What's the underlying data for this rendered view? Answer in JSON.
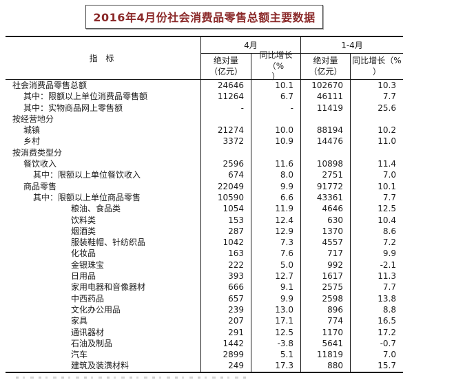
{
  "title": "2016年4月份社会消费品零售总额主要数据",
  "table": {
    "indicator_header": "指  标",
    "group_headers": {
      "april": "4月",
      "jan_april": "1-4月"
    },
    "sub_headers": {
      "apr_abs": "绝对量\n（亿元）",
      "apr_growth": "同比增长（%\n）",
      "ytd_abs": "绝对量\n（亿元）",
      "ytd_growth": "同比增长（%\n）"
    },
    "rows": [
      {
        "label": "社会消费品零售总额",
        "indent": 0,
        "apr_abs": "24646",
        "apr_growth": "10.1",
        "ytd_abs": "102670",
        "ytd_growth": "10.3"
      },
      {
        "label": "其中：限额以上单位消费品零售额",
        "indent": 1,
        "apr_abs": "11264",
        "apr_growth": "6.7",
        "ytd_abs": "46111",
        "ytd_growth": "7.7"
      },
      {
        "label": "其中：实物商品网上零售额",
        "indent": 1,
        "apr_abs": "-",
        "apr_growth": "-",
        "ytd_abs": "11419",
        "ytd_growth": "25.6"
      },
      {
        "label": "按经营地分",
        "indent": 0,
        "apr_abs": "",
        "apr_growth": "",
        "ytd_abs": "",
        "ytd_growth": ""
      },
      {
        "label": "城镇",
        "indent": 1,
        "apr_abs": "21274",
        "apr_growth": "10.0",
        "ytd_abs": "88194",
        "ytd_growth": "10.2"
      },
      {
        "label": "乡村",
        "indent": 1,
        "apr_abs": "3372",
        "apr_growth": "10.9",
        "ytd_abs": "14476",
        "ytd_growth": "11.0"
      },
      {
        "label": "按消费类型分",
        "indent": 0,
        "apr_abs": "",
        "apr_growth": "",
        "ytd_abs": "",
        "ytd_growth": ""
      },
      {
        "label": "餐饮收入",
        "indent": 1,
        "apr_abs": "2596",
        "apr_growth": "11.6",
        "ytd_abs": "10898",
        "ytd_growth": "11.4"
      },
      {
        "label": "其中：限额以上单位餐饮收入",
        "indent": 2,
        "apr_abs": "674",
        "apr_growth": "8.0",
        "ytd_abs": "2751",
        "ytd_growth": "7.0"
      },
      {
        "label": "商品零售",
        "indent": 1,
        "apr_abs": "22049",
        "apr_growth": "9.9",
        "ytd_abs": "91772",
        "ytd_growth": "10.1"
      },
      {
        "label": "其中：限额以上单位商品零售",
        "indent": 2,
        "apr_abs": "10590",
        "apr_growth": "6.6",
        "ytd_abs": "43361",
        "ytd_growth": "7.7"
      },
      {
        "label": "粮油、食品类",
        "indent": 3,
        "apr_abs": "1054",
        "apr_growth": "11.9",
        "ytd_abs": "4646",
        "ytd_growth": "12.5"
      },
      {
        "label": "饮料类",
        "indent": 3,
        "apr_abs": "153",
        "apr_growth": "12.4",
        "ytd_abs": "630",
        "ytd_growth": "10.4"
      },
      {
        "label": "烟酒类",
        "indent": 3,
        "apr_abs": "287",
        "apr_growth": "12.9",
        "ytd_abs": "1370",
        "ytd_growth": "8.6"
      },
      {
        "label": "服装鞋帽、针纺织品",
        "indent": 3,
        "apr_abs": "1042",
        "apr_growth": "7.3",
        "ytd_abs": "4557",
        "ytd_growth": "7.2"
      },
      {
        "label": "化妆品",
        "indent": 3,
        "apr_abs": "163",
        "apr_growth": "7.6",
        "ytd_abs": "717",
        "ytd_growth": "9.9"
      },
      {
        "label": "金银珠宝",
        "indent": 3,
        "apr_abs": "222",
        "apr_growth": "5.0",
        "ytd_abs": "992",
        "ytd_growth": "-2.1"
      },
      {
        "label": "日用品",
        "indent": 3,
        "apr_abs": "393",
        "apr_growth": "12.7",
        "ytd_abs": "1617",
        "ytd_growth": "11.3"
      },
      {
        "label": "家用电器和音像器材",
        "indent": 3,
        "apr_abs": "666",
        "apr_growth": "9.1",
        "ytd_abs": "2575",
        "ytd_growth": "7.7"
      },
      {
        "label": "中西药品",
        "indent": 3,
        "apr_abs": "657",
        "apr_growth": "9.9",
        "ytd_abs": "2598",
        "ytd_growth": "13.8"
      },
      {
        "label": "文化办公用品",
        "indent": 3,
        "apr_abs": "239",
        "apr_growth": "13.0",
        "ytd_abs": "896",
        "ytd_growth": "8.8"
      },
      {
        "label": "家具",
        "indent": 3,
        "apr_abs": "207",
        "apr_growth": "17.1",
        "ytd_abs": "774",
        "ytd_growth": "16.5"
      },
      {
        "label": "通讯器材",
        "indent": 3,
        "apr_abs": "291",
        "apr_growth": "12.5",
        "ytd_abs": "1170",
        "ytd_growth": "17.2"
      },
      {
        "label": "石油及制品",
        "indent": 3,
        "apr_abs": "1442",
        "apr_growth": "-3.8",
        "ytd_abs": "5641",
        "ytd_growth": "-0.7"
      },
      {
        "label": "汽车",
        "indent": 3,
        "apr_abs": "2899",
        "apr_growth": "5.1",
        "ytd_abs": "11819",
        "ytd_growth": "7.0"
      },
      {
        "label": "建筑及装潢材料",
        "indent": 3,
        "apr_abs": "249",
        "apr_growth": "17.3",
        "ytd_abs": "880",
        "ytd_growth": "15.7"
      }
    ]
  }
}
